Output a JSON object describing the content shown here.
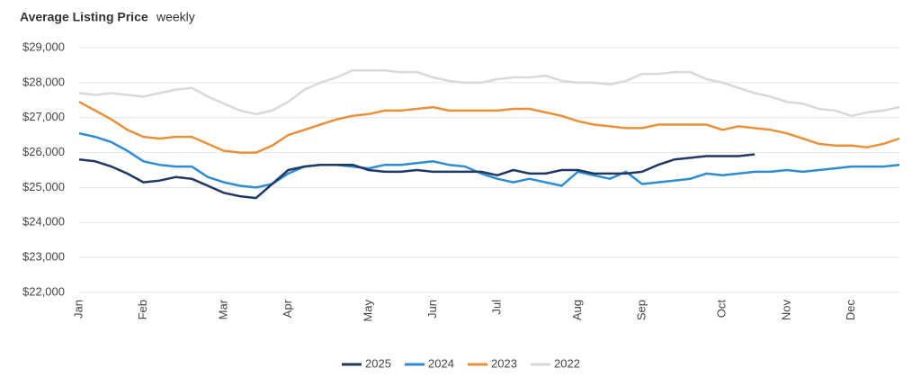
{
  "chart_data": {
    "type": "line",
    "title": "Average Listing Price",
    "subtitle": "weekly",
    "categories": [
      "Jan",
      null,
      null,
      null,
      "Feb",
      null,
      null,
      null,
      null,
      "Mar",
      null,
      null,
      null,
      "Apr",
      null,
      null,
      null,
      null,
      "May",
      null,
      null,
      null,
      "Jun",
      null,
      null,
      null,
      "Jul",
      null,
      null,
      null,
      null,
      "Aug",
      null,
      null,
      null,
      "Sep",
      null,
      null,
      null,
      null,
      "Oct",
      null,
      null,
      null,
      "Nov",
      null,
      null,
      null,
      "Dec",
      null,
      null,
      null
    ],
    "series": [
      {
        "name": "2025",
        "color": "#1f3864",
        "values": [
          25800,
          25750,
          25600,
          25400,
          25150,
          25200,
          25300,
          25250,
          25050,
          24850,
          24750,
          24700,
          25100,
          25500,
          25600,
          25650,
          25650,
          25650,
          25500,
          25450,
          25450,
          25500,
          25450,
          25450,
          25450,
          25450,
          25350,
          25500,
          25400,
          25400,
          25500,
          25500,
          25400,
          25400,
          25400,
          25450,
          25650,
          25800,
          25850,
          25900,
          25900,
          25900,
          25950,
          null,
          null,
          null,
          null,
          null,
          null,
          null,
          null,
          null
        ]
      },
      {
        "name": "2024",
        "color": "#2e8ccf",
        "values": [
          26550,
          26450,
          26300,
          26050,
          25750,
          25650,
          25600,
          25600,
          25300,
          25150,
          25050,
          25000,
          25100,
          25400,
          25600,
          25650,
          25650,
          25600,
          25550,
          25650,
          25650,
          25700,
          25750,
          25650,
          25600,
          25400,
          25250,
          25150,
          25250,
          25150,
          25050,
          25450,
          25350,
          25250,
          25450,
          25100,
          25150,
          25200,
          25250,
          25400,
          25350,
          25400,
          25450,
          25450,
          25500,
          25450,
          25500,
          25550,
          25600,
          25600,
          25600,
          25650
        ]
      },
      {
        "name": "2023",
        "color": "#e8903a",
        "values": [
          27450,
          27200,
          26950,
          26650,
          26450,
          26400,
          26450,
          26450,
          26250,
          26050,
          26000,
          26000,
          26200,
          26500,
          26650,
          26800,
          26950,
          27050,
          27100,
          27200,
          27200,
          27250,
          27300,
          27200,
          27200,
          27200,
          27200,
          27250,
          27250,
          27150,
          27050,
          26900,
          26800,
          26750,
          26700,
          26700,
          26800,
          26800,
          26800,
          26800,
          26650,
          26750,
          26700,
          26650,
          26550,
          26400,
          26250,
          26200,
          26200,
          26150,
          26250,
          26400
        ]
      },
      {
        "name": "2022",
        "color": "#d9d9d9",
        "values": [
          27700,
          27650,
          27700,
          27650,
          27600,
          27700,
          27800,
          27850,
          27600,
          27400,
          27200,
          27100,
          27200,
          27450,
          27800,
          28000,
          28150,
          28350,
          28350,
          28350,
          28300,
          28300,
          28150,
          28050,
          28000,
          28000,
          28100,
          28150,
          28150,
          28200,
          28050,
          28000,
          28000,
          27950,
          28050,
          28250,
          28250,
          28300,
          28300,
          28100,
          28000,
          27850,
          27700,
          27600,
          27450,
          27400,
          27250,
          27200,
          27050,
          27150,
          27200,
          27300
        ]
      }
    ],
    "ylim": [
      22000,
      29000
    ],
    "yticks": [
      {
        "value": 22000,
        "label": "$22,000"
      },
      {
        "value": 23000,
        "label": "$23,000"
      },
      {
        "value": 24000,
        "label": "$24,000"
      },
      {
        "value": 25000,
        "label": "$25,000"
      },
      {
        "value": 26000,
        "label": "$26,000"
      },
      {
        "value": 27000,
        "label": "$27,000"
      },
      {
        "value": 28000,
        "label": "$28,000"
      },
      {
        "value": 29000,
        "label": "$29,000"
      }
    ],
    "grid": true,
    "legend": "bottom"
  }
}
